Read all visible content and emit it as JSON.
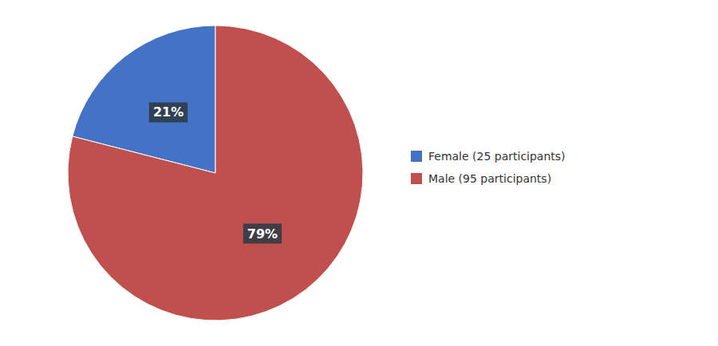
{
  "chart_data": {
    "type": "pie",
    "categories": [
      "Female (25 participants)",
      "Male (95 participants)"
    ],
    "values": [
      21,
      79
    ],
    "value_labels": [
      "21%",
      "79%"
    ],
    "colors": [
      "#4472C4",
      "#C0504D"
    ],
    "data_labels": true,
    "legend": "right"
  }
}
